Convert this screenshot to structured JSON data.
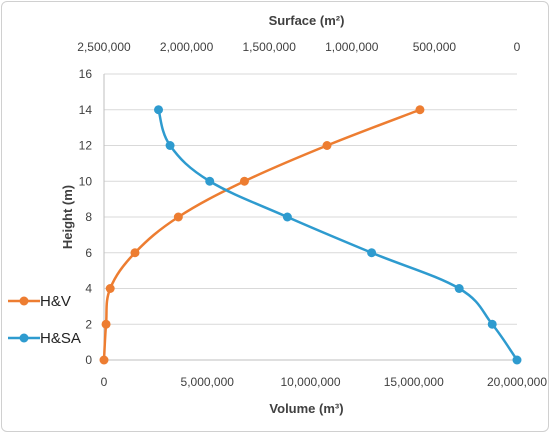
{
  "chart_data": {
    "type": "line",
    "title": "",
    "ylabel": "Height (m)",
    "xlabel_bottom": "Volume (m³)",
    "xlabel_top": "Surface (m²)",
    "ylim": [
      0,
      16
    ],
    "xlim_bottom": [
      0,
      20000000
    ],
    "xlim_top": [
      2500000,
      0
    ],
    "y_ticks": [
      "0",
      "2",
      "4",
      "6",
      "8",
      "10",
      "12",
      "14",
      "16"
    ],
    "x_ticks_bottom": [
      "0",
      "5,000,000",
      "10,000,000",
      "15,000,000",
      "20,000,000"
    ],
    "x_ticks_top": [
      "2,500,000",
      "2,000,000",
      "1,500,000",
      "1,000,000",
      "500,000",
      "0"
    ],
    "grid": "horizontal",
    "legend_position": "left",
    "series": [
      {
        "name": "H&V",
        "axis": "bottom",
        "color": "#ED7D31",
        "points": [
          {
            "x": 0,
            "y": 0
          },
          {
            "x": 100000,
            "y": 2
          },
          {
            "x": 300000,
            "y": 4
          },
          {
            "x": 1500000,
            "y": 6
          },
          {
            "x": 3600000,
            "y": 8
          },
          {
            "x": 6800000,
            "y": 10
          },
          {
            "x": 10800000,
            "y": 12
          },
          {
            "x": 15300000,
            "y": 14
          }
        ]
      },
      {
        "name": "H&SA",
        "axis": "top",
        "color": "#2E9BCF",
        "points": [
          {
            "x": 0,
            "y": 0
          },
          {
            "x": 150000,
            "y": 2
          },
          {
            "x": 350000,
            "y": 4
          },
          {
            "x": 880000,
            "y": 6
          },
          {
            "x": 1390000,
            "y": 8
          },
          {
            "x": 1860000,
            "y": 10
          },
          {
            "x": 2100000,
            "y": 12
          },
          {
            "x": 2170000,
            "y": 14
          }
        ]
      }
    ]
  }
}
